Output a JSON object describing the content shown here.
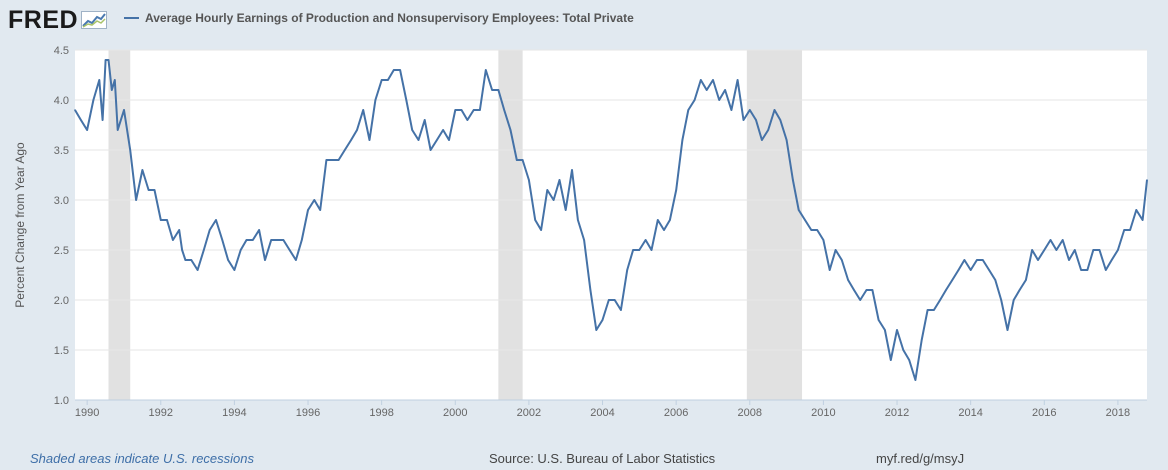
{
  "header": {
    "logo_text": "FRED",
    "legend_label": "Average Hourly Earnings of Production and Nonsupervisory Employees: Total Private"
  },
  "footer": {
    "recession_note": "Shaded areas indicate U.S. recessions",
    "source": "Source: U.S. Bureau of Labor Statistics",
    "shortlink": "myf.red/g/msyJ"
  },
  "colors": {
    "series": "#4572a7",
    "recession": "#e1e1e1",
    "background": "#e1e9f0",
    "plot": "#ffffff"
  },
  "chart_data": {
    "type": "line",
    "title": "Average Hourly Earnings of Production and Nonsupervisory Employees: Total Private",
    "xlabel": "",
    "ylabel": "Percent Change from Year Ago",
    "xlim": [
      1989.67,
      2018.79
    ],
    "ylim": [
      1.0,
      4.5
    ],
    "yticks": [
      1.0,
      1.5,
      2.0,
      2.5,
      3.0,
      3.5,
      4.0,
      4.5
    ],
    "ytick_labels": [
      "1.0",
      "1.5",
      "2.0",
      "2.5",
      "3.0",
      "3.5",
      "4.0",
      "4.5"
    ],
    "xticks": [
      1990,
      1992,
      1994,
      1996,
      1998,
      2000,
      2002,
      2004,
      2006,
      2008,
      2010,
      2012,
      2014,
      2016,
      2018
    ],
    "xtick_labels": [
      "1990",
      "1992",
      "1994",
      "1996",
      "1998",
      "2000",
      "2002",
      "2004",
      "2006",
      "2008",
      "2010",
      "2012",
      "2014",
      "2016",
      "2018"
    ],
    "grid": true,
    "recessions": [
      [
        1990.58,
        1991.17
      ],
      [
        2001.17,
        2001.83
      ],
      [
        2007.92,
        2009.42
      ]
    ],
    "series": [
      {
        "name": "Average Hourly Earnings of Production and Nonsupervisory Employees: Total Private",
        "x": [
          1989.67,
          1989.83,
          1990.0,
          1990.17,
          1990.33,
          1990.42,
          1990.5,
          1990.58,
          1990.67,
          1990.75,
          1990.83,
          1991.0,
          1991.17,
          1991.33,
          1991.5,
          1991.67,
          1991.83,
          1992.0,
          1992.17,
          1992.33,
          1992.5,
          1992.58,
          1992.67,
          1992.83,
          1993.0,
          1993.17,
          1993.33,
          1993.5,
          1993.67,
          1993.83,
          1994.0,
          1994.17,
          1994.33,
          1994.5,
          1994.67,
          1994.83,
          1995.0,
          1995.17,
          1995.33,
          1995.5,
          1995.67,
          1995.83,
          1996.0,
          1996.17,
          1996.33,
          1996.5,
          1996.67,
          1996.83,
          1997.0,
          1997.17,
          1997.33,
          1997.5,
          1997.67,
          1997.83,
          1998.0,
          1998.17,
          1998.33,
          1998.5,
          1998.67,
          1998.83,
          1999.0,
          1999.17,
          1999.33,
          1999.5,
          1999.67,
          1999.83,
          2000.0,
          2000.17,
          2000.33,
          2000.5,
          2000.67,
          2000.83,
          2001.0,
          2001.17,
          2001.33,
          2001.5,
          2001.67,
          2001.83,
          2002.0,
          2002.17,
          2002.33,
          2002.5,
          2002.67,
          2002.83,
          2003.0,
          2003.17,
          2003.33,
          2003.5,
          2003.67,
          2003.83,
          2004.0,
          2004.17,
          2004.33,
          2004.5,
          2004.67,
          2004.83,
          2005.0,
          2005.17,
          2005.33,
          2005.5,
          2005.67,
          2005.83,
          2006.0,
          2006.17,
          2006.33,
          2006.5,
          2006.67,
          2006.83,
          2007.0,
          2007.17,
          2007.33,
          2007.5,
          2007.67,
          2007.83,
          2008.0,
          2008.17,
          2008.33,
          2008.5,
          2008.67,
          2008.83,
          2009.0,
          2009.17,
          2009.33,
          2009.5,
          2009.67,
          2009.83,
          2010.0,
          2010.17,
          2010.33,
          2010.5,
          2010.67,
          2010.83,
          2011.0,
          2011.17,
          2011.33,
          2011.5,
          2011.67,
          2011.83,
          2012.0,
          2012.17,
          2012.33,
          2012.5,
          2012.67,
          2012.83,
          2013.0,
          2013.17,
          2013.33,
          2013.5,
          2013.67,
          2013.83,
          2014.0,
          2014.17,
          2014.33,
          2014.5,
          2014.67,
          2014.83,
          2015.0,
          2015.17,
          2015.33,
          2015.5,
          2015.67,
          2015.83,
          2016.0,
          2016.17,
          2016.33,
          2016.5,
          2016.67,
          2016.83,
          2017.0,
          2017.17,
          2017.33,
          2017.5,
          2017.67,
          2017.83,
          2018.0,
          2018.17,
          2018.33,
          2018.5,
          2018.67,
          2018.79
        ],
        "values": [
          3.9,
          3.8,
          3.7,
          4.0,
          4.2,
          3.8,
          4.4,
          4.4,
          4.1,
          4.2,
          3.7,
          3.9,
          3.5,
          3.0,
          3.3,
          3.1,
          3.1,
          2.8,
          2.8,
          2.6,
          2.7,
          2.5,
          2.4,
          2.4,
          2.3,
          2.5,
          2.7,
          2.8,
          2.6,
          2.4,
          2.3,
          2.5,
          2.6,
          2.6,
          2.7,
          2.4,
          2.6,
          2.6,
          2.6,
          2.5,
          2.4,
          2.6,
          2.9,
          3.0,
          2.9,
          3.4,
          3.4,
          3.4,
          3.5,
          3.6,
          3.7,
          3.9,
          3.6,
          4.0,
          4.2,
          4.2,
          4.3,
          4.3,
          4.0,
          3.7,
          3.6,
          3.8,
          3.5,
          3.6,
          3.7,
          3.6,
          3.9,
          3.9,
          3.8,
          3.9,
          3.9,
          4.3,
          4.1,
          4.1,
          3.9,
          3.7,
          3.4,
          3.4,
          3.2,
          2.8,
          2.7,
          3.1,
          3.0,
          3.2,
          2.9,
          3.3,
          2.8,
          2.6,
          2.1,
          1.7,
          1.8,
          2.0,
          2.0,
          1.9,
          2.3,
          2.5,
          2.5,
          2.6,
          2.5,
          2.8,
          2.7,
          2.8,
          3.1,
          3.6,
          3.9,
          4.0,
          4.2,
          4.1,
          4.2,
          4.0,
          4.1,
          3.9,
          4.2,
          3.8,
          3.9,
          3.8,
          3.6,
          3.7,
          3.9,
          3.8,
          3.6,
          3.2,
          2.9,
          2.8,
          2.7,
          2.7,
          2.6,
          2.3,
          2.5,
          2.4,
          2.2,
          2.1,
          2.0,
          2.1,
          2.1,
          1.8,
          1.7,
          1.4,
          1.7,
          1.5,
          1.4,
          1.2,
          1.6,
          1.9,
          1.9,
          2.0,
          2.1,
          2.2,
          2.3,
          2.4,
          2.3,
          2.4,
          2.4,
          2.3,
          2.2,
          2.0,
          1.7,
          2.0,
          2.1,
          2.2,
          2.5,
          2.4,
          2.5,
          2.6,
          2.5,
          2.6,
          2.4,
          2.5,
          2.3,
          2.3,
          2.5,
          2.5,
          2.3,
          2.4,
          2.5,
          2.7,
          2.7,
          2.9,
          2.8,
          3.2
        ]
      }
    ]
  }
}
